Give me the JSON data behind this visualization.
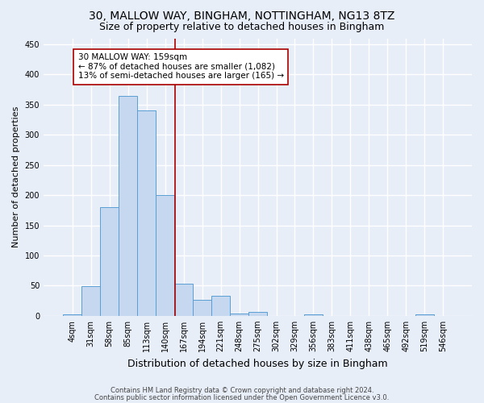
{
  "title1": "30, MALLOW WAY, BINGHAM, NOTTINGHAM, NG13 8TZ",
  "title2": "Size of property relative to detached houses in Bingham",
  "xlabel": "Distribution of detached houses by size in Bingham",
  "ylabel": "Number of detached properties",
  "footer1": "Contains HM Land Registry data © Crown copyright and database right 2024.",
  "footer2": "Contains public sector information licensed under the Open Government Licence v3.0.",
  "bin_labels": [
    "4sqm",
    "31sqm",
    "58sqm",
    "85sqm",
    "113sqm",
    "140sqm",
    "167sqm",
    "194sqm",
    "221sqm",
    "248sqm",
    "275sqm",
    "302sqm",
    "329sqm",
    "356sqm",
    "383sqm",
    "411sqm",
    "438sqm",
    "465sqm",
    "492sqm",
    "519sqm",
    "546sqm"
  ],
  "bar_values": [
    2,
    49,
    180,
    365,
    340,
    200,
    53,
    26,
    33,
    4,
    6,
    0,
    0,
    2,
    0,
    0,
    0,
    0,
    0,
    2,
    0
  ],
  "bar_color": "#c5d8f0",
  "bar_edge_color": "#5a9fd4",
  "vline_x": 5.54,
  "vline_color": "#aa0000",
  "annotation_text": "30 MALLOW WAY: 159sqm\n← 87% of detached houses are smaller (1,082)\n13% of semi-detached houses are larger (165) →",
  "annotation_box_color": "#ffffff",
  "annotation_box_edge": "#aa0000",
  "ylim": [
    0,
    460
  ],
  "yticks": [
    0,
    50,
    100,
    150,
    200,
    250,
    300,
    350,
    400,
    450
  ],
  "bg_color": "#e8eef8",
  "plot_bg_color": "#e8eef8",
  "grid_color": "#ffffff",
  "title_fontsize": 10,
  "subtitle_fontsize": 9,
  "title_fontweight": "normal",
  "xlabel_fontsize": 9,
  "ylabel_fontsize": 8,
  "tick_fontsize": 7,
  "footer_fontsize": 6,
  "annot_fontsize": 7.5
}
